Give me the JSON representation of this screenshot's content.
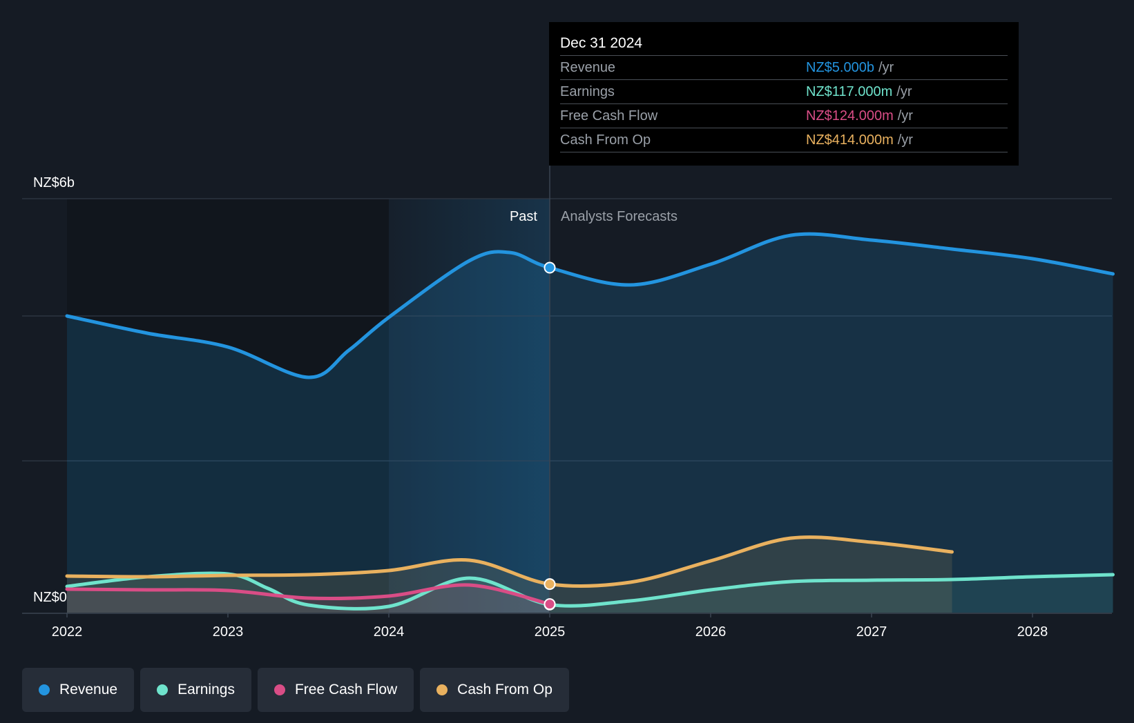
{
  "colors": {
    "background": "#151b24",
    "revenue": "#2394df",
    "earnings": "#6fe3cc",
    "free_cash_flow": "#d94d86",
    "cash_from_op": "#e9b15f"
  },
  "chart_data": {
    "type": "area",
    "y_top_label": "NZ$6b",
    "y_bottom_label": "NZ$0",
    "ylim": [
      0,
      6.0
    ],
    "xlim": [
      2022.0,
      2028.5
    ],
    "x_ticks": [
      "2022",
      "2023",
      "2024",
      "2025",
      "2026",
      "2027",
      "2028"
    ],
    "x_tick_values": [
      2022,
      2023,
      2024,
      2025,
      2026,
      2027,
      2028
    ],
    "highlight_range": [
      2024.0,
      2025.0
    ],
    "divider_x": 2025.0,
    "past_label": "Past",
    "forecast_label": "Analysts Forecasts",
    "grid": true,
    "series": [
      {
        "name": "Revenue",
        "key": "revenue",
        "color": "#2394df",
        "x": [
          2022.0,
          2022.5,
          2023.0,
          2023.5,
          2023.75,
          2024.0,
          2024.5,
          2024.75,
          2025.0,
          2025.5,
          2026.0,
          2026.5,
          2027.0,
          2027.5,
          2028.0,
          2028.5
        ],
        "y": [
          4.3,
          4.05,
          3.85,
          3.41,
          3.8,
          4.28,
          5.1,
          5.22,
          5.0,
          4.75,
          5.05,
          5.47,
          5.4,
          5.27,
          5.13,
          4.91
        ]
      },
      {
        "name": "Earnings",
        "key": "earnings",
        "color": "#6fe3cc",
        "x": [
          2022.0,
          2022.5,
          2023.0,
          2023.25,
          2023.5,
          2024.0,
          2024.5,
          2025.0,
          2025.5,
          2026.0,
          2026.5,
          2027.0,
          2027.5,
          2028.0,
          2028.5
        ],
        "y": [
          0.38,
          0.52,
          0.56,
          0.35,
          0.11,
          0.09,
          0.5,
          0.117,
          0.17,
          0.33,
          0.45,
          0.47,
          0.48,
          0.52,
          0.55
        ]
      },
      {
        "name": "Free Cash Flow",
        "key": "free_cash_flow",
        "color": "#d94d86",
        "x": [
          2022.0,
          2022.5,
          2023.0,
          2023.5,
          2024.0,
          2024.5,
          2025.0
        ],
        "y": [
          0.34,
          0.33,
          0.32,
          0.21,
          0.24,
          0.4,
          0.124
        ]
      },
      {
        "name": "Cash From Op",
        "key": "cash_from_op",
        "color": "#e9b15f",
        "x": [
          2022.0,
          2022.5,
          2023.0,
          2023.5,
          2024.0,
          2024.5,
          2025.0,
          2025.5,
          2026.0,
          2026.5,
          2027.0,
          2027.5
        ],
        "y": [
          0.53,
          0.52,
          0.54,
          0.55,
          0.61,
          0.76,
          0.414,
          0.44,
          0.75,
          1.08,
          1.02,
          0.88
        ]
      }
    ]
  },
  "tooltip": {
    "date": "Dec 31 2024",
    "unit": "/yr",
    "rows": [
      {
        "label": "Revenue",
        "value": "NZ$5.000b",
        "color": "#2394df"
      },
      {
        "label": "Earnings",
        "value": "NZ$117.000m",
        "color": "#6fe3cc"
      },
      {
        "label": "Free Cash Flow",
        "value": "NZ$124.000m",
        "color": "#d94d86"
      },
      {
        "label": "Cash From Op",
        "value": "NZ$414.000m",
        "color": "#e9b15f"
      }
    ]
  },
  "legend": [
    {
      "label": "Revenue",
      "color": "#2394df"
    },
    {
      "label": "Earnings",
      "color": "#6fe3cc"
    },
    {
      "label": "Free Cash Flow",
      "color": "#d94d86"
    },
    {
      "label": "Cash From Op",
      "color": "#e9b15f"
    }
  ]
}
